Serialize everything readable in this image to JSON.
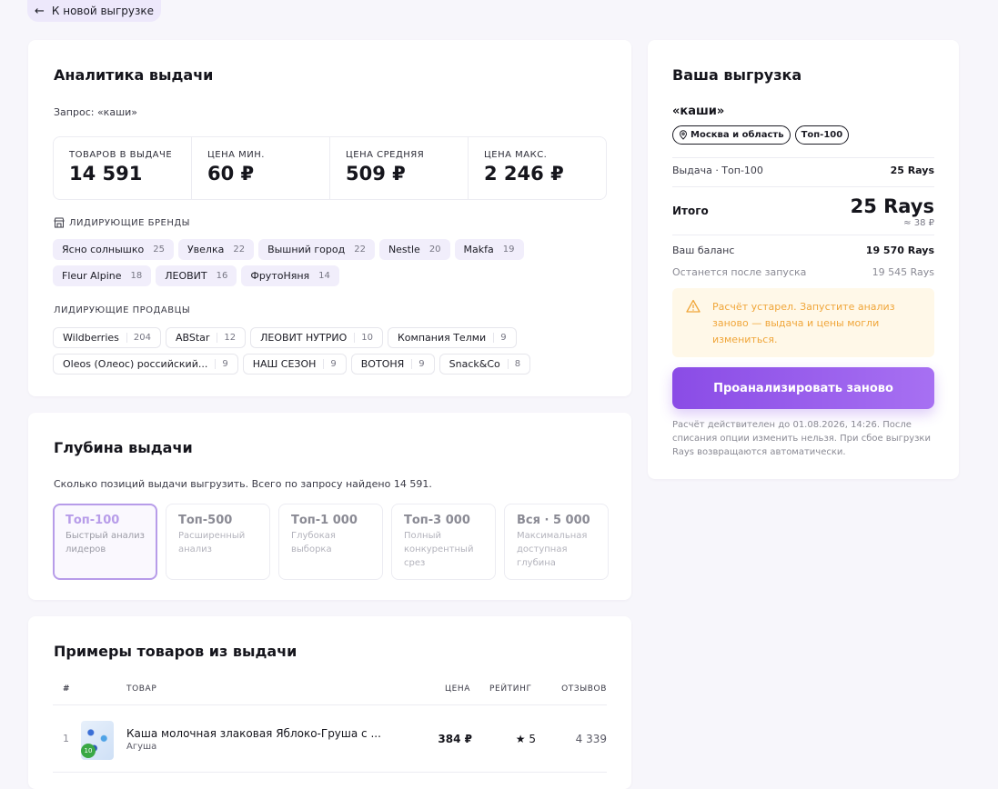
{
  "back": {
    "label": "К новой выгрузке"
  },
  "analytics": {
    "title": "Аналитика выдачи",
    "query_text": "Запрос: «каши»",
    "stats": [
      {
        "label": "ТОВАРОВ В ВЫДАЧЕ",
        "value": "14 591"
      },
      {
        "label": "ЦЕНА МИН.",
        "value": "60 ₽"
      },
      {
        "label": "ЦЕНА СРЕДНЯЯ",
        "value": "509 ₽"
      },
      {
        "label": "ЦЕНА МАКС.",
        "value": "2 246 ₽"
      }
    ],
    "brands_label": "ЛИДИРУЮЩИЕ БРЕНДЫ",
    "brands": [
      {
        "name": "Ясно солнышко",
        "count": "25"
      },
      {
        "name": "Увелка",
        "count": "22"
      },
      {
        "name": "Вышний город",
        "count": "22"
      },
      {
        "name": "Nestle",
        "count": "20"
      },
      {
        "name": "Makfa",
        "count": "19"
      },
      {
        "name": "Fleur Alpine",
        "count": "18"
      },
      {
        "name": "ЛЕОВИТ",
        "count": "16"
      },
      {
        "name": "ФрутоНяня",
        "count": "14"
      }
    ],
    "sellers_label": "ЛИДИРУЮЩИЕ ПРОДАВЦЫ",
    "sellers": [
      {
        "name": "Wildberries",
        "count": "204"
      },
      {
        "name": "ABStar",
        "count": "12"
      },
      {
        "name": "ЛЕОВИТ НУТРИО",
        "count": "10"
      },
      {
        "name": "Компания Телми",
        "count": "9"
      },
      {
        "name": "Oleos (Олеос) российский...",
        "count": "9"
      },
      {
        "name": "НАШ СЕЗОН",
        "count": "9"
      },
      {
        "name": "ВОТОНЯ",
        "count": "9"
      },
      {
        "name": "Snack&Co",
        "count": "8"
      }
    ]
  },
  "depth": {
    "title": "Глубина выдачи",
    "description": "Сколько позиций выдачи выгрузить. Всего по запросу найдено 14 591.",
    "tiers": [
      {
        "name": "Топ-100",
        "desc": "Быстрый анализ лидеров",
        "active": true
      },
      {
        "name": "Топ-500",
        "desc": "Расширенный анализ"
      },
      {
        "name": "Топ-1 000",
        "desc": "Глубокая выборка"
      },
      {
        "name": "Топ-3 000",
        "desc": "Полный конкурентный срез"
      },
      {
        "name": "Вся · 5 000",
        "desc": "Максимальная доступная глубина"
      }
    ]
  },
  "examples": {
    "title": "Примеры товаров из выдачи",
    "columns": {
      "num": "#",
      "product": "ТОВАР",
      "price": "ЦЕНА",
      "rating": "РЕЙТИНГ",
      "reviews": "ОТЗЫВОВ"
    },
    "rows": [
      {
        "num": "1",
        "name": "Каша молочная злаковая Яблоко-Груша с ...",
        "brand": "Агуша",
        "price": "384 ₽",
        "rating": "★ 5",
        "reviews": "4 339",
        "thumb_badge": "10"
      }
    ]
  },
  "order": {
    "title": "Ваша выгрузка",
    "query": "«каши»",
    "region": "Москва и область",
    "depth_tag": "Топ-100",
    "line_label": "Выдача · Топ-100",
    "line_value": "25 Rays",
    "total_label": "Итого",
    "total_value": "25 Rays",
    "total_sub": "≈ 38 ₽",
    "balance_label": "Ваш баланс",
    "balance_value": "19 570 Rays",
    "remain_label": "Останется после запуска",
    "remain_value": "19 545 Rays",
    "alert": "Расчёт устарел. Запустите анализ заново — выдача и цены могли измениться.",
    "cta": "Проанализировать заново",
    "note": "Расчёт действителен до 01.08.2026, 14:26. После списания опции изменить нельзя. При сбое выгрузки Rays возвращаются автоматически."
  }
}
